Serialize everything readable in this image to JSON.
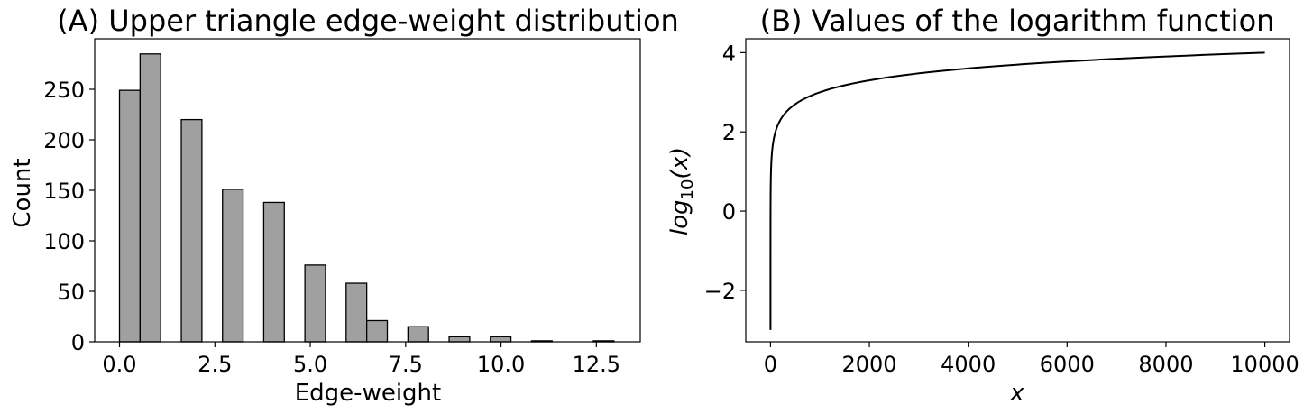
{
  "chart_data": [
    {
      "type": "bar",
      "title": "(A) Upper triangle edge-weight distribution",
      "xlabel": "Edge-weight",
      "ylabel": "Count",
      "xlim": [
        -0.65,
        13.65
      ],
      "ylim": [
        0,
        300
      ],
      "xticks": [
        0,
        2.5,
        5,
        7.5,
        10,
        12.5
      ],
      "xtick_labels": [
        "0.0",
        "2.5",
        "5.0",
        "7.5",
        "10.0",
        "12.5"
      ],
      "yticks": [
        0,
        50,
        100,
        150,
        200,
        250
      ],
      "ytick_labels": [
        "0",
        "50",
        "100",
        "150",
        "200",
        "250"
      ],
      "grid": false,
      "bar_color": "#a0a0a0",
      "edge_color": "#000000",
      "bin_width": 0.54,
      "bins": [
        {
          "x": 0.0,
          "count": 249
        },
        {
          "x": 0.54,
          "count": 285
        },
        {
          "x": 1.62,
          "count": 220
        },
        {
          "x": 2.7,
          "count": 151
        },
        {
          "x": 3.78,
          "count": 138
        },
        {
          "x": 4.86,
          "count": 76
        },
        {
          "x": 5.94,
          "count": 58
        },
        {
          "x": 6.48,
          "count": 21
        },
        {
          "x": 7.56,
          "count": 15
        },
        {
          "x": 8.64,
          "count": 5
        },
        {
          "x": 9.72,
          "count": 5
        },
        {
          "x": 10.8,
          "count": 1
        },
        {
          "x": 12.42,
          "count": 1
        }
      ]
    },
    {
      "type": "line",
      "title": "(B) Values of the logarithm function",
      "xlabel": "x",
      "ylabel_base": "log",
      "ylabel_sub": "10",
      "ylabel_arg": "(x)",
      "function": "log10",
      "x_range": [
        0.001,
        10000
      ],
      "xlim": [
        -500,
        10500
      ],
      "ylim": [
        -3.3,
        4.35
      ],
      "xticks": [
        0,
        2000,
        4000,
        6000,
        8000,
        10000
      ],
      "xtick_labels": [
        "0",
        "2000",
        "4000",
        "6000",
        "8000",
        "10000"
      ],
      "yticks": [
        -2,
        0,
        2,
        4
      ],
      "ytick_labels": [
        "−2",
        "0",
        "2",
        "4"
      ],
      "grid": false,
      "line_color": "#000000"
    }
  ]
}
